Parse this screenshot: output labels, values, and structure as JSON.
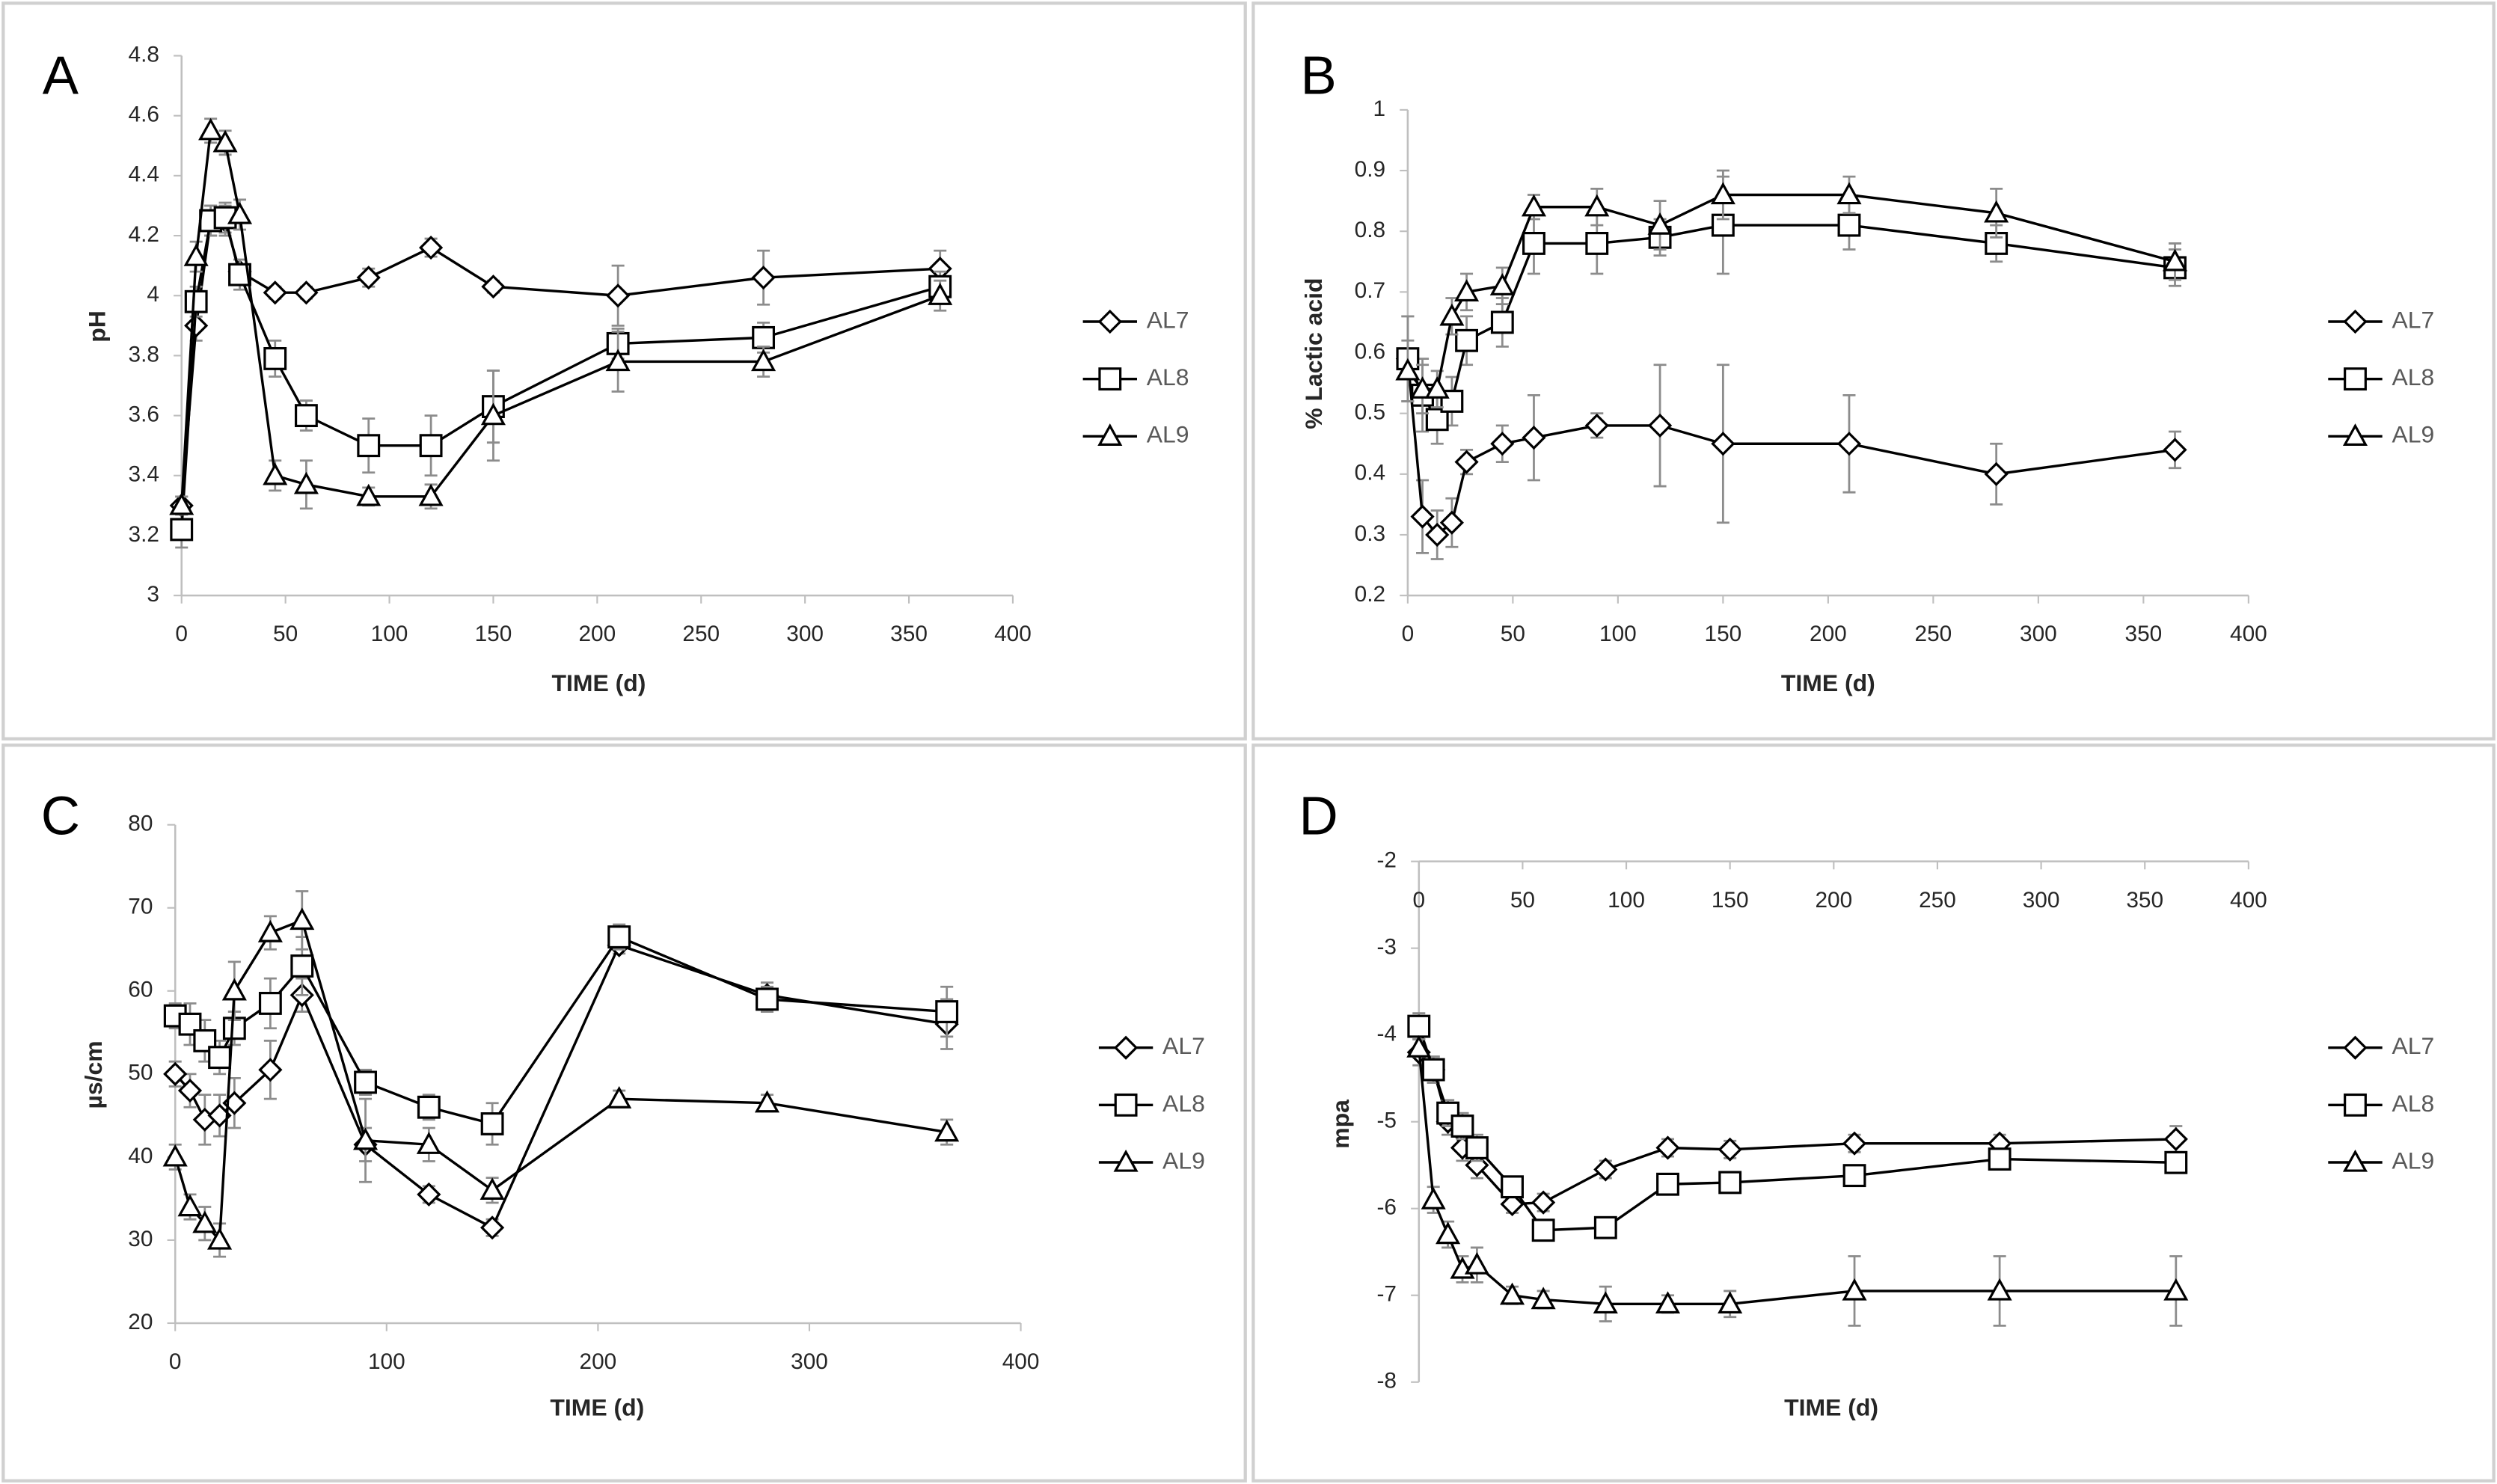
{
  "chart_data": [
    {
      "type": "line",
      "label": "A",
      "xlabel": "TIME (d)",
      "ylabel": "pH",
      "x": [
        0,
        7,
        14,
        21,
        28,
        45,
        60,
        90,
        120,
        150,
        210,
        280,
        365
      ],
      "xlim": [
        0,
        400
      ],
      "xticks": [
        0,
        50,
        100,
        150,
        200,
        250,
        300,
        350,
        400
      ],
      "ylim": [
        3,
        4.8
      ],
      "yticks": [
        3,
        3.2,
        3.4,
        3.6,
        3.8,
        4,
        4.2,
        4.4,
        4.6,
        4.8
      ],
      "x_axis": "bottom",
      "series": [
        {
          "name": "AL7",
          "color": "#000000",
          "marker": "diamond",
          "values": [
            3.3,
            3.9,
            4.25,
            4.25,
            4.08,
            4.01,
            4.01,
            4.06,
            4.16,
            4.03,
            4.0,
            4.06,
            4.09
          ],
          "errors": [
            0.03,
            0.05,
            0.05,
            0.05,
            0.04,
            0.02,
            0.02,
            0.03,
            0.03,
            0.02,
            0.1,
            0.09,
            0.06
          ]
        },
        {
          "name": "AL8",
          "color": "#000000",
          "marker": "square",
          "values": [
            3.22,
            3.98,
            4.25,
            4.26,
            4.07,
            3.79,
            3.6,
            3.5,
            3.5,
            3.63,
            3.84,
            3.86,
            4.03
          ],
          "errors": [
            0.06,
            0.05,
            0.05,
            0.05,
            0.05,
            0.06,
            0.05,
            0.09,
            0.1,
            0.12,
            0.05,
            0.05,
            0.05
          ]
        },
        {
          "name": "AL9",
          "color": "#000000",
          "marker": "triangle",
          "values": [
            3.3,
            4.13,
            4.55,
            4.51,
            4.27,
            3.4,
            3.37,
            3.33,
            3.33,
            3.6,
            3.78,
            3.78,
            4.0
          ],
          "errors": [
            0.03,
            0.05,
            0.04,
            0.04,
            0.05,
            0.05,
            0.08,
            0.03,
            0.04,
            0.15,
            0.1,
            0.05,
            0.05
          ]
        }
      ]
    },
    {
      "type": "line",
      "label": "B",
      "xlabel": "TIME (d)",
      "ylabel": "% Lactic acid",
      "x": [
        0,
        7,
        14,
        21,
        28,
        45,
        60,
        90,
        120,
        150,
        210,
        280,
        365
      ],
      "xlim": [
        0,
        400
      ],
      "xticks": [
        0,
        50,
        100,
        150,
        200,
        250,
        300,
        350,
        400
      ],
      "ylim": [
        0.2,
        1
      ],
      "yticks": [
        0.2,
        0.3,
        0.4,
        0.5,
        0.6,
        0.7,
        0.8,
        0.9,
        1
      ],
      "x_axis": "bottom",
      "series": [
        {
          "name": "AL7",
          "color": "#000000",
          "marker": "diamond",
          "values": [
            0.59,
            0.33,
            0.3,
            0.32,
            0.42,
            0.45,
            0.46,
            0.48,
            0.48,
            0.45,
            0.45,
            0.4,
            0.44
          ],
          "errors": [
            0.07,
            0.06,
            0.04,
            0.04,
            0.02,
            0.03,
            0.07,
            0.02,
            0.1,
            0.13,
            0.08,
            0.05,
            0.03
          ]
        },
        {
          "name": "AL8",
          "color": "#000000",
          "marker": "square",
          "values": [
            0.59,
            0.53,
            0.49,
            0.52,
            0.62,
            0.65,
            0.78,
            0.78,
            0.79,
            0.81,
            0.81,
            0.78,
            0.74
          ],
          "errors": [
            0.07,
            0.06,
            0.04,
            0.04,
            0.04,
            0.04,
            0.05,
            0.05,
            0.03,
            0.08,
            0.04,
            0.03,
            0.03
          ]
        },
        {
          "name": "AL9",
          "color": "#000000",
          "marker": "triangle",
          "values": [
            0.57,
            0.54,
            0.54,
            0.66,
            0.7,
            0.71,
            0.84,
            0.84,
            0.81,
            0.86,
            0.86,
            0.83,
            0.75
          ],
          "errors": [
            0.05,
            0.04,
            0.03,
            0.03,
            0.03,
            0.03,
            0.02,
            0.03,
            0.04,
            0.04,
            0.03,
            0.04,
            0.03
          ]
        }
      ]
    },
    {
      "type": "line",
      "label": "C",
      "xlabel": "TIME (d)",
      "ylabel": "µs/cm",
      "x": [
        0,
        7,
        14,
        21,
        28,
        45,
        60,
        90,
        120,
        150,
        210,
        280,
        365
      ],
      "xlim": [
        0,
        400
      ],
      "xticks": [
        0,
        100,
        200,
        300,
        400
      ],
      "ylim": [
        20,
        80
      ],
      "yticks": [
        20,
        30,
        40,
        50,
        60,
        70,
        80
      ],
      "x_axis": "bottom",
      "series": [
        {
          "name": "AL7",
          "color": "#000000",
          "marker": "diamond",
          "values": [
            50,
            48,
            44.5,
            45,
            46.5,
            50.5,
            59.5,
            41.5,
            35.5,
            31.5,
            65.5,
            59.5,
            56
          ],
          "errors": [
            1.5,
            2,
            3,
            2.5,
            3,
            3.5,
            2,
            2,
            1,
            1,
            1,
            1.5,
            3
          ]
        },
        {
          "name": "AL8",
          "color": "#000000",
          "marker": "square",
          "values": [
            57,
            56,
            54,
            52,
            55.5,
            58.5,
            63,
            49,
            46,
            44,
            66.5,
            59,
            57.5
          ],
          "errors": [
            1.5,
            2.5,
            2.5,
            2,
            2,
            3,
            3.5,
            1.5,
            1.5,
            2.5,
            1.5,
            1.5,
            3
          ]
        },
        {
          "name": "AL9",
          "color": "#000000",
          "marker": "triangle",
          "values": [
            40,
            34,
            32,
            30,
            60,
            67,
            68.5,
            42,
            41.5,
            36,
            47,
            46.5,
            43
          ],
          "errors": [
            1.5,
            1.5,
            2,
            2,
            3.5,
            2,
            3.5,
            5,
            2,
            1.5,
            1,
            1,
            1.5
          ]
        }
      ]
    },
    {
      "type": "line",
      "label": "D",
      "xlabel": "TIME (d)",
      "ylabel": "mpa",
      "x": [
        0,
        7,
        14,
        21,
        28,
        45,
        60,
        90,
        120,
        150,
        210,
        280,
        365
      ],
      "xlim": [
        0,
        400
      ],
      "xticks": [
        0,
        50,
        100,
        150,
        200,
        250,
        300,
        350,
        400
      ],
      "ylim": [
        -8,
        -2
      ],
      "yticks": [
        -8,
        -7,
        -6,
        -5,
        -4,
        -3,
        -2
      ],
      "x_axis": "top",
      "series": [
        {
          "name": "AL7",
          "color": "#000000",
          "marker": "diamond",
          "values": [
            -4.2,
            -4.4,
            -5.0,
            -5.3,
            -5.5,
            -5.95,
            -5.93,
            -5.55,
            -5.3,
            -5.32,
            -5.25,
            -5.25,
            -5.2
          ],
          "errors": [
            0.15,
            0.15,
            0.15,
            0.15,
            0.15,
            0.1,
            0.1,
            0.1,
            0.1,
            0.1,
            0.1,
            0.1,
            0.15
          ]
        },
        {
          "name": "AL8",
          "color": "#000000",
          "marker": "square",
          "values": [
            -3.9,
            -4.4,
            -4.9,
            -5.05,
            -5.3,
            -5.75,
            -6.25,
            -6.22,
            -5.72,
            -5.7,
            -5.62,
            -5.43,
            -5.47
          ],
          "errors": [
            0.15,
            0.15,
            0.15,
            0.15,
            0.15,
            0.1,
            0.1,
            0.1,
            0.1,
            0.1,
            0.1,
            0.1,
            0.1
          ]
        },
        {
          "name": "AL9",
          "color": "#000000",
          "marker": "triangle",
          "values": [
            -4.15,
            -5.9,
            -6.3,
            -6.7,
            -6.65,
            -7.0,
            -7.05,
            -7.1,
            -7.1,
            -7.1,
            -6.95,
            -6.95,
            -6.95
          ],
          "errors": [
            0.1,
            0.15,
            0.15,
            0.15,
            0.2,
            0.1,
            0.1,
            0.2,
            0.1,
            0.15,
            0.4,
            0.4,
            0.4
          ]
        }
      ]
    }
  ]
}
